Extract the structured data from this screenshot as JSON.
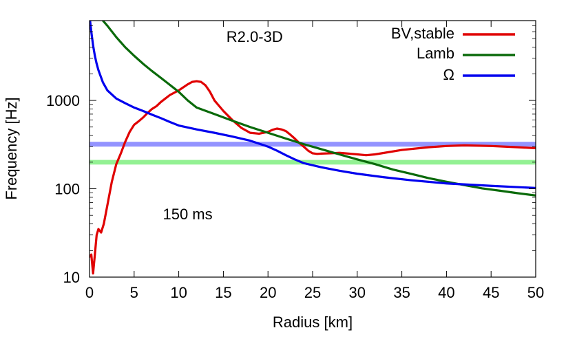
{
  "chart_data": {
    "type": "line",
    "xlabel": "Radius [km]",
    "ylabel": "Frequency [Hz]",
    "xlim": [
      0,
      50
    ],
    "ylim": [
      10,
      8000
    ],
    "yscale": "log",
    "x_ticks": [
      0,
      5,
      10,
      15,
      20,
      25,
      30,
      35,
      40,
      45,
      50
    ],
    "y_ticks": [
      10,
      100,
      1000
    ],
    "y_tick_labels": [
      "10",
      "100",
      "1000"
    ],
    "legend_position": "top-right",
    "annotations": [
      {
        "text": "R2.0-3D",
        "x": 18.5,
        "y": 4600
      },
      {
        "text": "150 ms",
        "x": 11,
        "y": 45
      }
    ],
    "bands": [
      {
        "name": "blue-band",
        "y_low": 300,
        "y_high": 340,
        "color": "#8080ff"
      },
      {
        "name": "green-band",
        "y_low": 188,
        "y_high": 212,
        "color": "#80ee80"
      }
    ],
    "series": [
      {
        "name": "BV,stable",
        "color": "#e00000",
        "x": [
          0,
          0.2,
          0.4,
          0.6,
          0.8,
          1.0,
          1.3,
          1.6,
          2.0,
          2.5,
          3.0,
          3.5,
          4.0,
          4.5,
          5.0,
          5.5,
          6.0,
          6.5,
          7.0,
          7.5,
          8.0,
          9.0,
          10.0,
          11.0,
          11.5,
          12.0,
          12.5,
          13.0,
          13.5,
          14.0,
          15.0,
          16.0,
          17.0,
          18.0,
          19.0,
          20.0,
          20.5,
          21.0,
          21.5,
          22.0,
          22.5,
          23.0,
          23.5,
          24.0,
          24.5,
          25.0,
          25.5,
          26.0,
          27.0,
          28.0,
          30.0,
          31.0,
          32.0,
          35.0,
          38.0,
          40.0,
          42.0,
          45.0,
          48.0,
          50.0
        ],
        "y": [
          17,
          18,
          11,
          18,
          30,
          35,
          32,
          40,
          65,
          120,
          190,
          250,
          340,
          440,
          530,
          580,
          640,
          720,
          800,
          860,
          960,
          1150,
          1300,
          1520,
          1620,
          1650,
          1620,
          1480,
          1250,
          1000,
          760,
          600,
          490,
          430,
          420,
          440,
          465,
          480,
          470,
          450,
          410,
          370,
          330,
          300,
          270,
          252,
          248,
          250,
          252,
          255,
          245,
          240,
          245,
          275,
          295,
          305,
          310,
          305,
          295,
          288
        ]
      },
      {
        "name": "Lamb",
        "color": "#0a6a0a",
        "x": [
          1.5,
          2.0,
          3.0,
          4.0,
          5.0,
          6.0,
          7.0,
          8.0,
          9.0,
          10.0,
          11.0,
          12.0,
          14.0,
          16.0,
          18.0,
          20.0,
          22.0,
          24.0,
          26.0,
          28.0,
          30.0,
          32.0,
          34.0,
          36.0,
          38.0,
          40.0,
          42.0,
          44.0,
          46.0,
          48.0,
          50.0
        ],
        "y": [
          8000,
          7000,
          5200,
          4000,
          3200,
          2600,
          2150,
          1800,
          1500,
          1250,
          1000,
          830,
          700,
          590,
          500,
          430,
          370,
          320,
          280,
          245,
          215,
          190,
          165,
          148,
          132,
          120,
          110,
          101,
          95,
          89,
          84
        ]
      },
      {
        "name": "Ω",
        "color": "#0000ee",
        "x": [
          0,
          0.2,
          0.4,
          0.6,
          0.8,
          1.0,
          1.5,
          2.0,
          3.0,
          4.0,
          5.0,
          6.0,
          7.0,
          8.0,
          9.0,
          10.0,
          12.0,
          14.0,
          16.0,
          18.0,
          20.0,
          21.0,
          22.0,
          23.0,
          24.0,
          26.0,
          28.0,
          30.0,
          33.0,
          36.0,
          40.0,
          45.0,
          50.0
        ],
        "y": [
          9000,
          6000,
          4200,
          3200,
          2600,
          2200,
          1600,
          1300,
          1050,
          930,
          830,
          760,
          690,
          630,
          570,
          520,
          470,
          430,
          390,
          350,
          300,
          270,
          240,
          215,
          195,
          175,
          160,
          148,
          135,
          125,
          115,
          108,
          102
        ]
      }
    ]
  }
}
